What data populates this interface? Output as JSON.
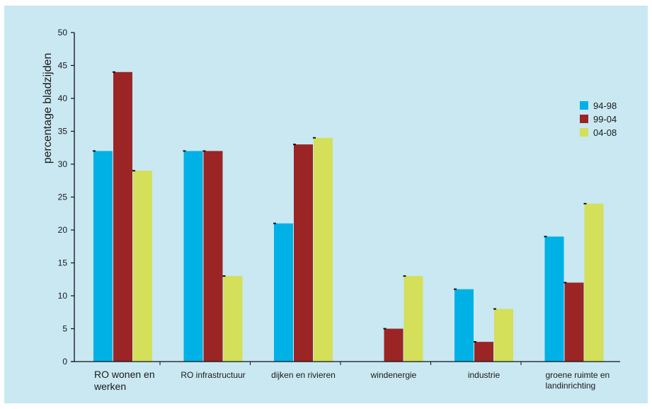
{
  "chart_data": {
    "type": "bar",
    "title": "",
    "xlabel": "",
    "ylabel": "percentage bladzijden",
    "ylim": [
      0,
      50
    ],
    "yticks": [
      0,
      5,
      10,
      15,
      20,
      25,
      30,
      35,
      40,
      45,
      50
    ],
    "categories": [
      [
        "RO wonen en",
        "werken"
      ],
      [
        "RO infrastructuur"
      ],
      [
        "dijken en rivieren"
      ],
      [
        "windenergie"
      ],
      [
        "industrie"
      ],
      [
        "groene ruimte en",
        "landinrichting"
      ]
    ],
    "series": [
      {
        "name": "94-98",
        "color": "#00b1e6",
        "values": [
          32,
          32,
          21,
          0,
          11,
          19
        ]
      },
      {
        "name": "99-04",
        "color": "#9b2525",
        "values": [
          44,
          32,
          33,
          5,
          3,
          12
        ]
      },
      {
        "name": "04-08",
        "color": "#d4df5a",
        "values": [
          29,
          13,
          34,
          13,
          8,
          24
        ]
      }
    ],
    "legend_position": "right",
    "grid": false
  }
}
